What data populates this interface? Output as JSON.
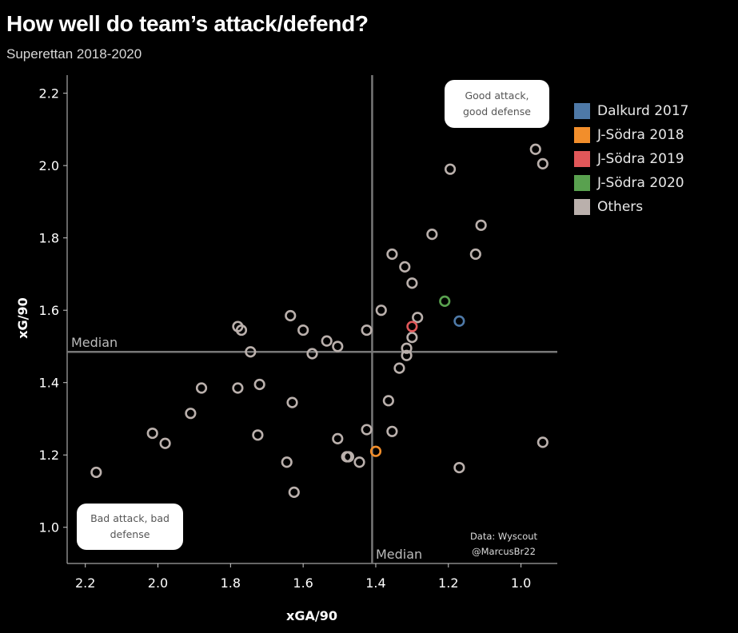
{
  "title": "How well do team’s attack/defend?",
  "subtitle": "Superettan 2018-2020",
  "source": {
    "line1": "Data: Wyscout",
    "line2": "@MarcusBr22"
  },
  "quadrant_labels": {
    "top_right": "Good attack, good defense",
    "bottom_left": "Bad attack, bad defense"
  },
  "median_label": "Median",
  "chart_data": {
    "type": "scatter",
    "xlabel": "xGA/90",
    "ylabel": "xG/90",
    "xlim": [
      2.25,
      0.9
    ],
    "x_reversed": true,
    "ylim": [
      0.9,
      2.25
    ],
    "x_ticks": [
      2.2,
      2.0,
      1.8,
      1.6,
      1.4,
      1.2,
      1.0
    ],
    "y_ticks": [
      1.0,
      1.2,
      1.4,
      1.6,
      1.8,
      2.0,
      2.2
    ],
    "median_x": 1.41,
    "median_y": 1.485,
    "grid": false,
    "legend_position": "right",
    "series": [
      {
        "name": "Dalkurd 2017",
        "color": "#4e79a7",
        "points": [
          [
            1.17,
            1.57
          ]
        ]
      },
      {
        "name": "J-Södra 2018",
        "color": "#f28e2b",
        "points": [
          [
            1.4,
            1.21
          ]
        ]
      },
      {
        "name": "J-Södra 2019",
        "color": "#e15759",
        "points": [
          [
            1.3,
            1.555
          ]
        ]
      },
      {
        "name": "J-Södra 2020",
        "color": "#59a14f",
        "points": [
          [
            1.21,
            1.625
          ]
        ]
      },
      {
        "name": "Others",
        "color": "#bab0ac",
        "points": [
          [
            0.96,
            2.045
          ],
          [
            0.94,
            2.005
          ],
          [
            1.195,
            1.99
          ],
          [
            1.11,
            1.835
          ],
          [
            1.245,
            1.81
          ],
          [
            1.125,
            1.755
          ],
          [
            1.355,
            1.755
          ],
          [
            1.32,
            1.72
          ],
          [
            1.3,
            1.675
          ],
          [
            1.385,
            1.6
          ],
          [
            1.285,
            1.58
          ],
          [
            1.635,
            1.585
          ],
          [
            1.78,
            1.555
          ],
          [
            1.77,
            1.545
          ],
          [
            1.6,
            1.545
          ],
          [
            1.425,
            1.545
          ],
          [
            1.535,
            1.515
          ],
          [
            1.3,
            1.525
          ],
          [
            1.315,
            1.495
          ],
          [
            1.505,
            1.5
          ],
          [
            1.745,
            1.485
          ],
          [
            1.575,
            1.48
          ],
          [
            1.315,
            1.475
          ],
          [
            1.335,
            1.44
          ],
          [
            1.88,
            1.385
          ],
          [
            1.78,
            1.385
          ],
          [
            1.72,
            1.395
          ],
          [
            1.365,
            1.35
          ],
          [
            1.63,
            1.345
          ],
          [
            1.91,
            1.315
          ],
          [
            2.015,
            1.26
          ],
          [
            1.725,
            1.255
          ],
          [
            1.425,
            1.27
          ],
          [
            1.355,
            1.265
          ],
          [
            1.98,
            1.232
          ],
          [
            1.505,
            1.245
          ],
          [
            0.94,
            1.235
          ],
          [
            1.48,
            1.195
          ],
          [
            1.475,
            1.195
          ],
          [
            1.445,
            1.18
          ],
          [
            1.645,
            1.18
          ],
          [
            2.17,
            1.152
          ],
          [
            1.17,
            1.165
          ],
          [
            1.625,
            1.097
          ]
        ]
      }
    ]
  }
}
